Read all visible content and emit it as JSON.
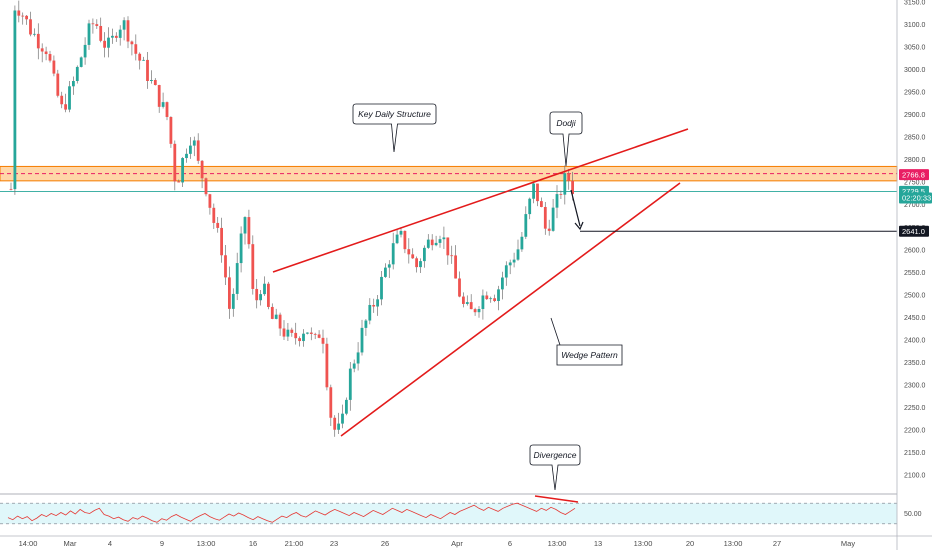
{
  "chart_data": {
    "type": "candlestick",
    "colors": {
      "up": "#26a69a",
      "down": "#ef5350",
      "wick": "#737373",
      "trendline": "#e31b1b",
      "zone_fill": "#ffd7a8",
      "zone_border": "#f57c00",
      "zone_midline": "#e91e63",
      "price_line": "#26a69a",
      "rsi_line": "#e53935",
      "rsi_band": "#e0f7fa",
      "target_line": "#131722"
    },
    "y_axis": {
      "range": [
        2055,
        3150
      ],
      "ticks": [
        "2100.0",
        "2150.0",
        "2200.0",
        "2250.0",
        "2300.0",
        "2350.0",
        "2400.0",
        "2450.0",
        "2500.0",
        "2550.0",
        "2600.0",
        "2650.0",
        "2700.0",
        "2750.0",
        "2800.0",
        "2850.0",
        "2900.0",
        "2950.0",
        "3000.0",
        "3050.0",
        "3100.0",
        "3150.0"
      ]
    },
    "x_axis": {
      "labels": [
        "14:00",
        "Mar",
        "4",
        "9",
        "13:00",
        "16",
        "21:00",
        "23",
        "26",
        "Apr",
        "6",
        "13:00",
        "13",
        "13:00",
        "20",
        "13:00",
        "27",
        "May"
      ]
    },
    "price_tags": [
      {
        "label": "2766.8",
        "value": 2766.8,
        "style": "zone"
      },
      {
        "label": "2729.5",
        "value": 2729.5,
        "style": "current"
      },
      {
        "label": "02:20:33",
        "value": 2715,
        "style": "timer"
      },
      {
        "label": "2641.0",
        "value": 2641.0,
        "style": "target"
      }
    ],
    "key_zone": {
      "low": 2753,
      "high": 2785,
      "mid": 2769
    },
    "rsi": {
      "ticks": [
        "50.00"
      ],
      "levels": [
        70,
        30
      ],
      "values": [
        42,
        38,
        45,
        40,
        44,
        36,
        41,
        48,
        44,
        50,
        46,
        52,
        47,
        55,
        49,
        58,
        52,
        50,
        56,
        60,
        48,
        45,
        40,
        43,
        38,
        35,
        42,
        39,
        45,
        41,
        36,
        33,
        40,
        37,
        44,
        48,
        43,
        39,
        35,
        41,
        46,
        50,
        44,
        40,
        37,
        43,
        49,
        45,
        51,
        47,
        42,
        38,
        44,
        40,
        36,
        33,
        39,
        45,
        42,
        48,
        52,
        46,
        43,
        49,
        55,
        51,
        47,
        53,
        58,
        54,
        50,
        46,
        52,
        48,
        44,
        50,
        56,
        52,
        48,
        54,
        60,
        56,
        52,
        58,
        54,
        50,
        46,
        42,
        48,
        44,
        40,
        46,
        52,
        48,
        54,
        58,
        62,
        66,
        60,
        56,
        62,
        58,
        54,
        60,
        64,
        68,
        70,
        66,
        62,
        58,
        54,
        60,
        56,
        62,
        58,
        52,
        48,
        54,
        60
      ]
    },
    "annotations": {
      "key_structure": "Key Daily Structure",
      "dodji": "Dodji",
      "wedge": "Wedge Pattern",
      "divergence": "Divergence"
    }
  }
}
